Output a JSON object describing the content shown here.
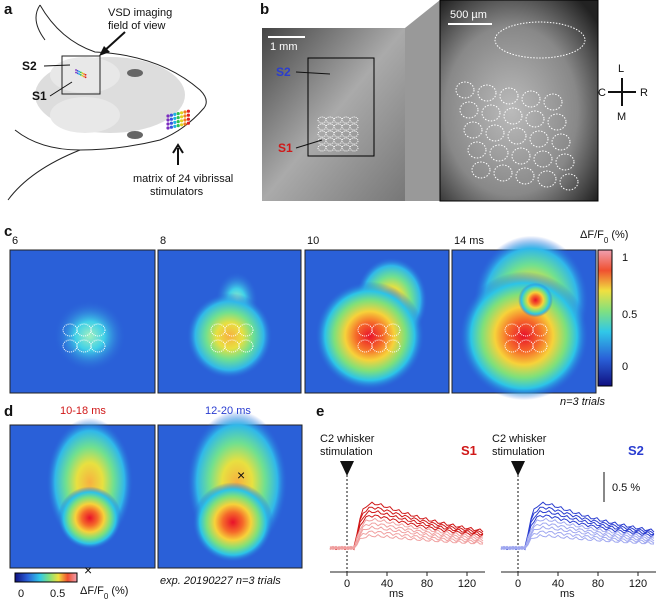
{
  "panel_a": {
    "label": "a",
    "field_of_view": [
      "VSD imaging",
      "field of view"
    ],
    "s2": "S2",
    "s1": "S1",
    "stimulators": [
      "matrix of 24 vibrissal",
      "stimulators"
    ]
  },
  "panel_b": {
    "label": "b",
    "scale_left": "1 mm",
    "scale_right": "500 µm",
    "s2": "S2",
    "s1": "S1",
    "compass": {
      "top": "L",
      "left": "C",
      "right": "R",
      "bottom": "M"
    }
  },
  "panel_c": {
    "label": "c",
    "frames": [
      "6",
      "8",
      "10",
      "14 ms"
    ],
    "colorbar": {
      "title": "ΔF/F",
      "subscript": "0",
      "unit": " (%)",
      "ticks": [
        "1",
        "0.5",
        "0"
      ]
    },
    "note": "n=3 trials"
  },
  "panel_d": {
    "label": "d",
    "windows": [
      "10-18 ms",
      "12-20 ms"
    ],
    "colorbar": {
      "title": "ΔF/F",
      "subscript": "0",
      "unit": " (%)",
      "ticks": [
        "0",
        "0.5"
      ]
    },
    "note": "exp. 20190227 n=3 trials"
  },
  "panel_e": {
    "label": "e",
    "stimulus": [
      "C2 whisker",
      "stimulation"
    ],
    "areas": [
      "S1",
      "S2"
    ],
    "scale": "0.5 %",
    "xticks": [
      "0",
      "40",
      "80",
      "120"
    ],
    "xlabel": "ms"
  }
}
